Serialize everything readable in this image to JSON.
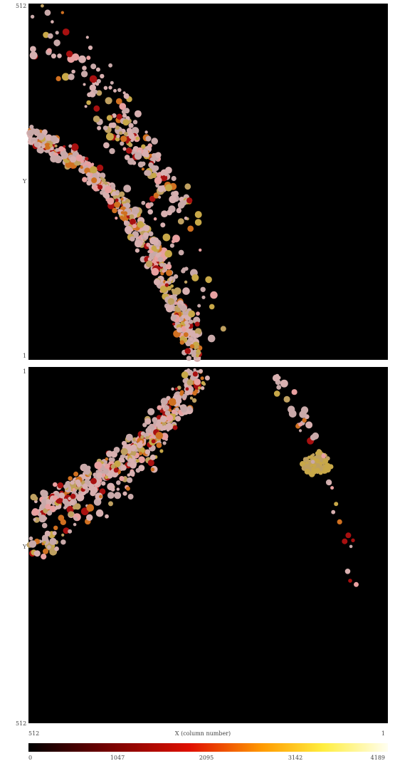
{
  "top_panel": {
    "y_top": 512,
    "y_label": "Y",
    "y_bottom": 1
  },
  "bottom_panel": {
    "y_top": 1,
    "y_label": "Y",
    "y_bottom": 512
  },
  "x_axis": {
    "left": 512,
    "label": "X (column number)",
    "right": 1
  },
  "colorbar": {
    "ticks": [
      0,
      1047,
      2095,
      3142,
      4189
    ]
  }
}
